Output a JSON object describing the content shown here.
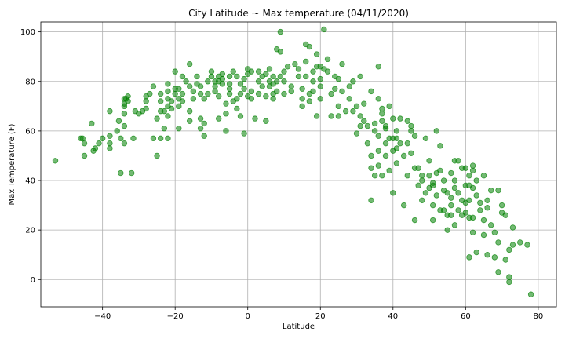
{
  "chart_data": {
    "type": "scatter",
    "title": "City Latitude ~ Max temperature (04/11/2020)",
    "xlabel": "Latitude",
    "ylabel": "Max Temperature (F)",
    "xlim": [
      -57,
      85
    ],
    "ylim": [
      -11,
      104
    ],
    "xticks": [
      -40,
      -20,
      0,
      20,
      40,
      60,
      80
    ],
    "yticks": [
      0,
      20,
      40,
      60,
      80,
      100
    ],
    "grid": true,
    "color": "#008000",
    "points": [
      [
        -53,
        48
      ],
      [
        -46,
        57
      ],
      [
        -45.5,
        57
      ],
      [
        -45,
        55
      ],
      [
        -45,
        50
      ],
      [
        -43,
        63
      ],
      [
        -42,
        53
      ],
      [
        -42.5,
        52
      ],
      [
        -41,
        55
      ],
      [
        -40,
        57
      ],
      [
        -38,
        53
      ],
      [
        -38,
        55
      ],
      [
        -38,
        58
      ],
      [
        -38,
        68
      ],
      [
        -36,
        60
      ],
      [
        -35.5,
        64
      ],
      [
        -35,
        57
      ],
      [
        -35,
        43
      ],
      [
        -34,
        55
      ],
      [
        -34,
        62
      ],
      [
        -34,
        67
      ],
      [
        -34,
        70
      ],
      [
        -34,
        71
      ],
      [
        -34,
        73
      ],
      [
        -33.5,
        73
      ],
      [
        -33,
        74
      ],
      [
        -33,
        72
      ],
      [
        -32,
        43
      ],
      [
        -31.5,
        57
      ],
      [
        -31,
        68
      ],
      [
        -30,
        67
      ],
      [
        -29,
        68
      ],
      [
        -28,
        69
      ],
      [
        -28,
        74
      ],
      [
        -28,
        72
      ],
      [
        -27,
        75
      ],
      [
        -26,
        78
      ],
      [
        -26,
        57
      ],
      [
        -25,
        50
      ],
      [
        -25,
        65
      ],
      [
        -24,
        57
      ],
      [
        -24,
        68
      ],
      [
        -24,
        75
      ],
      [
        -24,
        72
      ],
      [
        -23,
        68
      ],
      [
        -23,
        61
      ],
      [
        -22,
        57
      ],
      [
        -22,
        66
      ],
      [
        -22,
        70
      ],
      [
        -22,
        73
      ],
      [
        -22,
        76
      ],
      [
        -22,
        79
      ],
      [
        -21,
        69
      ],
      [
        -21,
        72
      ],
      [
        -20,
        84
      ],
      [
        -20,
        77
      ],
      [
        -20,
        75
      ],
      [
        -19,
        77
      ],
      [
        -19,
        73
      ],
      [
        -19,
        70
      ],
      [
        -19,
        61
      ],
      [
        -18,
        72
      ],
      [
        -18,
        75
      ],
      [
        -18,
        82
      ],
      [
        -17,
        80
      ],
      [
        -16,
        87
      ],
      [
        -16,
        78
      ],
      [
        -16,
        68
      ],
      [
        -16,
        64
      ],
      [
        -15,
        73
      ],
      [
        -15,
        76
      ],
      [
        -14,
        79
      ],
      [
        -14,
        82
      ],
      [
        -13,
        61
      ],
      [
        -13,
        65
      ],
      [
        -13,
        75
      ],
      [
        -13,
        78
      ],
      [
        -12,
        58
      ],
      [
        -12,
        63
      ],
      [
        -12,
        73
      ],
      [
        -11,
        80
      ],
      [
        -11,
        75
      ],
      [
        -10,
        82
      ],
      [
        -10,
        84
      ],
      [
        -9,
        80
      ],
      [
        -9,
        78
      ],
      [
        -9,
        76
      ],
      [
        -8,
        74
      ],
      [
        -8,
        82
      ],
      [
        -8,
        80
      ],
      [
        -8,
        65
      ],
      [
        -7,
        81
      ],
      [
        -7,
        83
      ],
      [
        -7,
        79
      ],
      [
        -6,
        67
      ],
      [
        -6,
        60
      ],
      [
        -6,
        71
      ],
      [
        -5,
        79
      ],
      [
        -5,
        82
      ],
      [
        -5,
        77
      ],
      [
        -5,
        75
      ],
      [
        -4,
        72
      ],
      [
        -4,
        84
      ],
      [
        -3,
        82
      ],
      [
        -3,
        73
      ],
      [
        -3,
        69
      ],
      [
        -2,
        66
      ],
      [
        -2,
        75
      ],
      [
        -2,
        79
      ],
      [
        -1,
        77
      ],
      [
        -1,
        59
      ],
      [
        -1,
        81
      ],
      [
        0,
        83
      ],
      [
        0,
        74
      ],
      [
        0,
        85
      ],
      [
        1,
        84
      ],
      [
        1,
        76
      ],
      [
        1,
        73
      ],
      [
        2,
        65
      ],
      [
        3,
        80
      ],
      [
        3,
        75
      ],
      [
        3,
        84
      ],
      [
        4,
        82
      ],
      [
        4,
        78
      ],
      [
        5,
        83
      ],
      [
        5,
        64
      ],
      [
        5,
        74
      ],
      [
        6,
        80
      ],
      [
        6,
        78
      ],
      [
        6,
        85
      ],
      [
        7,
        79
      ],
      [
        7,
        73
      ],
      [
        7,
        75
      ],
      [
        7,
        82
      ],
      [
        8,
        76
      ],
      [
        8,
        80
      ],
      [
        8,
        93
      ],
      [
        9,
        92
      ],
      [
        9,
        100
      ],
      [
        9,
        82
      ],
      [
        10,
        80
      ],
      [
        10,
        75
      ],
      [
        10,
        84
      ],
      [
        11,
        86
      ],
      [
        12,
        78
      ],
      [
        12,
        76
      ],
      [
        13,
        87
      ],
      [
        14,
        82
      ],
      [
        14,
        85
      ],
      [
        15,
        73
      ],
      [
        15,
        70
      ],
      [
        15,
        77
      ],
      [
        16,
        95
      ],
      [
        16,
        88
      ],
      [
        16,
        82
      ],
      [
        17,
        94
      ],
      [
        17,
        75
      ],
      [
        17,
        72
      ],
      [
        18,
        76
      ],
      [
        18,
        80
      ],
      [
        18,
        84
      ],
      [
        19,
        66
      ],
      [
        19,
        86
      ],
      [
        19,
        91
      ],
      [
        20,
        81
      ],
      [
        20,
        78
      ],
      [
        20,
        73
      ],
      [
        20,
        86
      ],
      [
        21,
        101
      ],
      [
        21,
        85
      ],
      [
        22,
        84
      ],
      [
        22,
        89
      ],
      [
        23,
        66
      ],
      [
        23,
        75
      ],
      [
        24,
        77
      ],
      [
        24,
        82
      ],
      [
        25,
        70
      ],
      [
        25,
        66
      ],
      [
        25,
        81
      ],
      [
        26,
        87
      ],
      [
        26,
        76
      ],
      [
        27,
        68
      ],
      [
        28,
        73
      ],
      [
        28,
        78
      ],
      [
        29,
        80
      ],
      [
        29,
        68
      ],
      [
        30,
        59
      ],
      [
        30,
        70
      ],
      [
        31,
        82
      ],
      [
        31,
        62
      ],
      [
        31,
        66
      ],
      [
        32,
        71
      ],
      [
        32,
        64
      ],
      [
        33,
        62
      ],
      [
        33,
        55
      ],
      [
        34,
        50
      ],
      [
        34,
        76
      ],
      [
        34,
        32
      ],
      [
        34,
        45
      ],
      [
        35,
        60
      ],
      [
        35,
        42
      ],
      [
        35,
        63
      ],
      [
        36,
        46
      ],
      [
        36,
        52
      ],
      [
        36,
        58
      ],
      [
        36,
        73
      ],
      [
        36,
        86
      ],
      [
        37,
        67
      ],
      [
        37,
        64
      ],
      [
        37,
        69
      ],
      [
        37,
        42
      ],
      [
        38,
        55
      ],
      [
        38,
        62
      ],
      [
        38,
        61
      ],
      [
        38,
        50
      ],
      [
        39,
        44
      ],
      [
        39,
        57
      ],
      [
        39,
        70
      ],
      [
        40,
        57
      ],
      [
        40,
        35
      ],
      [
        40,
        65
      ],
      [
        40,
        52
      ],
      [
        41,
        47
      ],
      [
        41,
        53
      ],
      [
        41,
        57
      ],
      [
        41,
        60
      ],
      [
        42,
        55
      ],
      [
        42,
        65
      ],
      [
        43,
        30
      ],
      [
        43,
        50
      ],
      [
        44,
        64
      ],
      [
        44,
        55
      ],
      [
        44,
        42
      ],
      [
        45,
        62
      ],
      [
        45,
        60
      ],
      [
        45,
        51
      ],
      [
        46,
        45
      ],
      [
        46,
        58
      ],
      [
        46,
        24
      ],
      [
        47,
        45
      ],
      [
        47,
        38
      ],
      [
        48,
        42
      ],
      [
        48,
        40
      ],
      [
        48,
        32
      ],
      [
        49,
        57
      ],
      [
        49,
        35
      ],
      [
        50,
        48
      ],
      [
        50,
        37
      ],
      [
        50,
        42
      ],
      [
        51,
        30
      ],
      [
        51,
        38
      ],
      [
        51,
        39
      ],
      [
        51,
        24
      ],
      [
        52,
        34
      ],
      [
        52,
        60
      ],
      [
        52,
        43
      ],
      [
        53,
        44
      ],
      [
        53,
        28
      ],
      [
        53,
        54
      ],
      [
        54,
        40
      ],
      [
        54,
        28
      ],
      [
        54,
        36
      ],
      [
        55,
        20
      ],
      [
        55,
        26
      ],
      [
        55,
        35
      ],
      [
        56,
        30
      ],
      [
        56,
        26
      ],
      [
        56,
        43
      ],
      [
        56,
        33
      ],
      [
        57,
        37
      ],
      [
        57,
        48
      ],
      [
        57,
        40
      ],
      [
        57,
        22
      ],
      [
        58,
        35
      ],
      [
        58,
        28
      ],
      [
        58,
        48
      ],
      [
        59,
        26
      ],
      [
        59,
        45
      ],
      [
        59,
        32
      ],
      [
        60,
        31
      ],
      [
        60,
        38
      ],
      [
        60,
        27
      ],
      [
        60,
        45
      ],
      [
        61,
        32
      ],
      [
        61,
        25
      ],
      [
        61,
        42
      ],
      [
        61,
        38
      ],
      [
        61,
        9
      ],
      [
        62,
        44
      ],
      [
        62,
        46
      ],
      [
        62,
        25
      ],
      [
        62,
        37
      ],
      [
        62,
        19
      ],
      [
        63,
        40
      ],
      [
        63,
        34
      ],
      [
        63,
        11
      ],
      [
        64,
        31
      ],
      [
        64,
        28
      ],
      [
        65,
        42
      ],
      [
        65,
        24
      ],
      [
        65,
        18
      ],
      [
        66,
        32
      ],
      [
        66,
        10
      ],
      [
        66,
        29
      ],
      [
        67,
        36
      ],
      [
        67,
        22
      ],
      [
        68,
        9
      ],
      [
        68,
        19
      ],
      [
        69,
        36
      ],
      [
        69,
        15
      ],
      [
        69,
        3
      ],
      [
        70,
        30
      ],
      [
        70,
        27
      ],
      [
        71,
        8
      ],
      [
        71,
        26
      ],
      [
        72,
        12
      ],
      [
        72,
        1
      ],
      [
        72,
        -1
      ],
      [
        73,
        14
      ],
      [
        73,
        21
      ],
      [
        75,
        15
      ],
      [
        77,
        14
      ],
      [
        78,
        -6
      ]
    ]
  }
}
